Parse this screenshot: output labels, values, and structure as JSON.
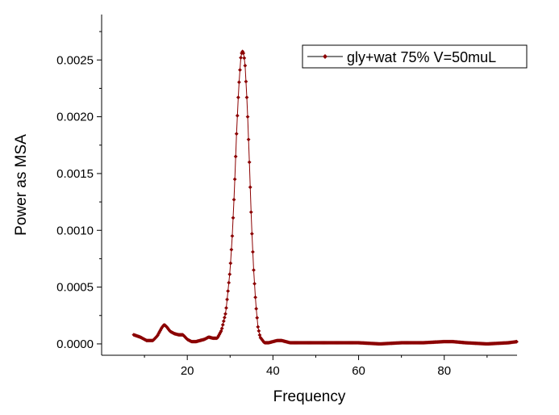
{
  "chart_data": {
    "type": "line",
    "title": "",
    "xlabel": "Frequency",
    "ylabel": "Power as MSA",
    "xlim": [
      0,
      97
    ],
    "ylim": [
      -0.0001,
      0.0029
    ],
    "x_ticks": [
      20,
      40,
      60,
      80
    ],
    "x_tick_labels": [
      "20",
      "40",
      "60",
      "80"
    ],
    "y_ticks": [
      0.0,
      0.0005,
      0.001,
      0.0015,
      0.002,
      0.0025
    ],
    "y_tick_labels": [
      "0.0000",
      "0.0005",
      "0.0010",
      "0.0015",
      "0.0020",
      "0.0025"
    ],
    "grid": false,
    "legend_position": "top-right",
    "series": [
      {
        "name": "gly+wat 75% V=50muL",
        "color": "#8b0000",
        "marker": "diamond",
        "x": [
          7.5,
          9,
          10.5,
          12,
          13,
          14,
          14.6,
          15.2,
          16,
          17,
          18,
          19,
          20,
          21,
          22,
          23,
          24,
          25,
          26,
          27,
          28,
          29,
          30,
          30.5,
          31,
          31.5,
          32,
          32.5,
          32.8,
          33,
          33.2,
          33.5,
          34,
          34.5,
          35,
          35.5,
          36,
          36.5,
          37,
          38,
          39,
          40,
          41,
          42,
          43,
          44,
          45,
          50,
          55,
          60,
          65,
          70,
          75,
          80,
          82,
          85,
          90,
          95,
          97
        ],
        "y": [
          8e-05,
          6e-05,
          3e-05,
          3e-05,
          7e-05,
          0.00014,
          0.00017,
          0.00015,
          0.00011,
          9e-05,
          8e-05,
          8e-05,
          4e-05,
          2e-05,
          2e-05,
          3e-05,
          4e-05,
          6e-05,
          5e-05,
          5e-05,
          0.00012,
          0.00028,
          0.00065,
          0.00095,
          0.00135,
          0.00185,
          0.00225,
          0.00252,
          0.00258,
          0.00257,
          0.00255,
          0.00245,
          0.0021,
          0.0016,
          0.00105,
          0.00065,
          0.00035,
          0.00015,
          6e-05,
          1e-05,
          1e-05,
          2e-05,
          3e-05,
          3e-05,
          2e-05,
          1e-05,
          1e-05,
          1e-05,
          1e-05,
          1e-05,
          0.0,
          1e-05,
          1e-05,
          2e-05,
          2e-05,
          1e-05,
          0.0,
          1e-05,
          2e-05
        ]
      }
    ]
  }
}
